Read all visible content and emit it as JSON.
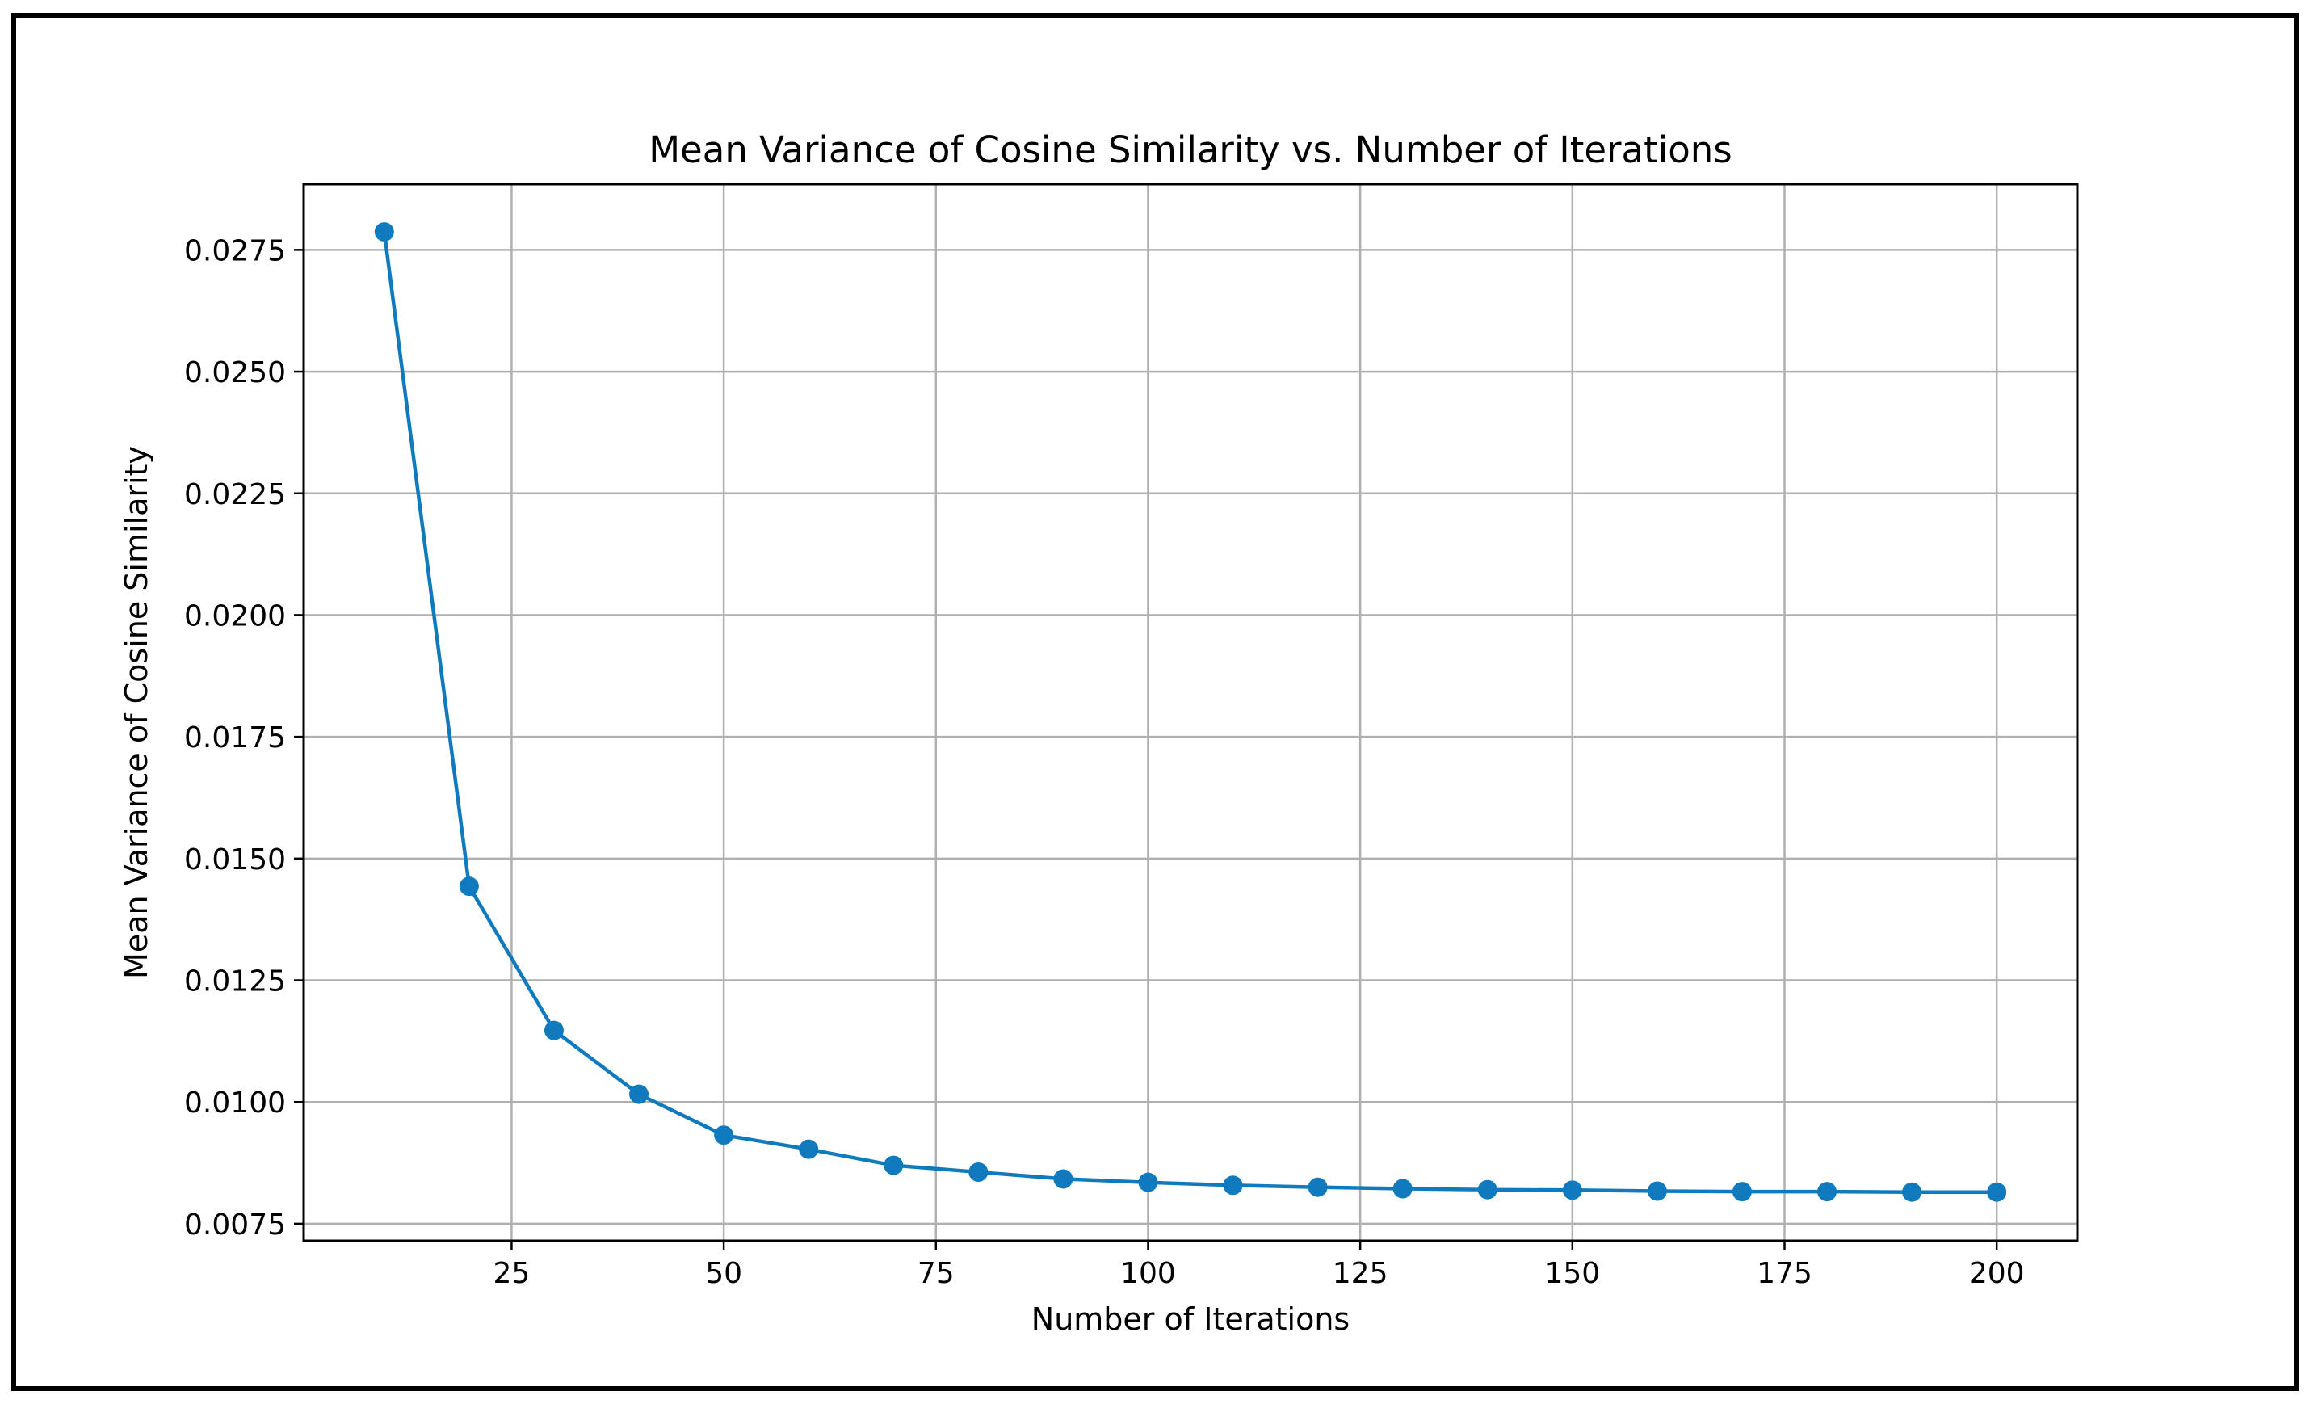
{
  "chart_data": {
    "type": "line",
    "title": "Mean Variance of Cosine Similarity vs. Number of Iterations",
    "xlabel": "Number of Iterations",
    "ylabel": "Mean Variance of Cosine Similarity",
    "xlim": [
      0.5,
      209.5
    ],
    "ylim": [
      0.00715,
      0.02885
    ],
    "xticks": [
      25,
      50,
      75,
      100,
      125,
      150,
      175,
      200
    ],
    "xtick_labels": [
      "25",
      "50",
      "75",
      "100",
      "125",
      "150",
      "175",
      "200"
    ],
    "yticks": [
      0.0075,
      0.01,
      0.0125,
      0.015,
      0.0175,
      0.02,
      0.0225,
      0.025,
      0.0275
    ],
    "ytick_labels": [
      "0.0075",
      "0.0100",
      "0.0125",
      "0.0150",
      "0.0175",
      "0.0200",
      "0.0225",
      "0.0250",
      "0.0275"
    ],
    "grid": true,
    "series": [
      {
        "name": "Mean Variance",
        "color": "#0F7BBE",
        "marker": "circle",
        "x": [
          10,
          20,
          30,
          40,
          50,
          60,
          70,
          80,
          90,
          100,
          110,
          120,
          130,
          140,
          150,
          160,
          170,
          180,
          190,
          200
        ],
        "values": [
          0.02787,
          0.01443,
          0.01147,
          0.01016,
          0.00932,
          0.00903,
          0.0087,
          0.00856,
          0.00842,
          0.00835,
          0.00829,
          0.00825,
          0.00822,
          0.0082,
          0.00819,
          0.00817,
          0.00816,
          0.00816,
          0.00815,
          0.00815
        ]
      }
    ]
  }
}
